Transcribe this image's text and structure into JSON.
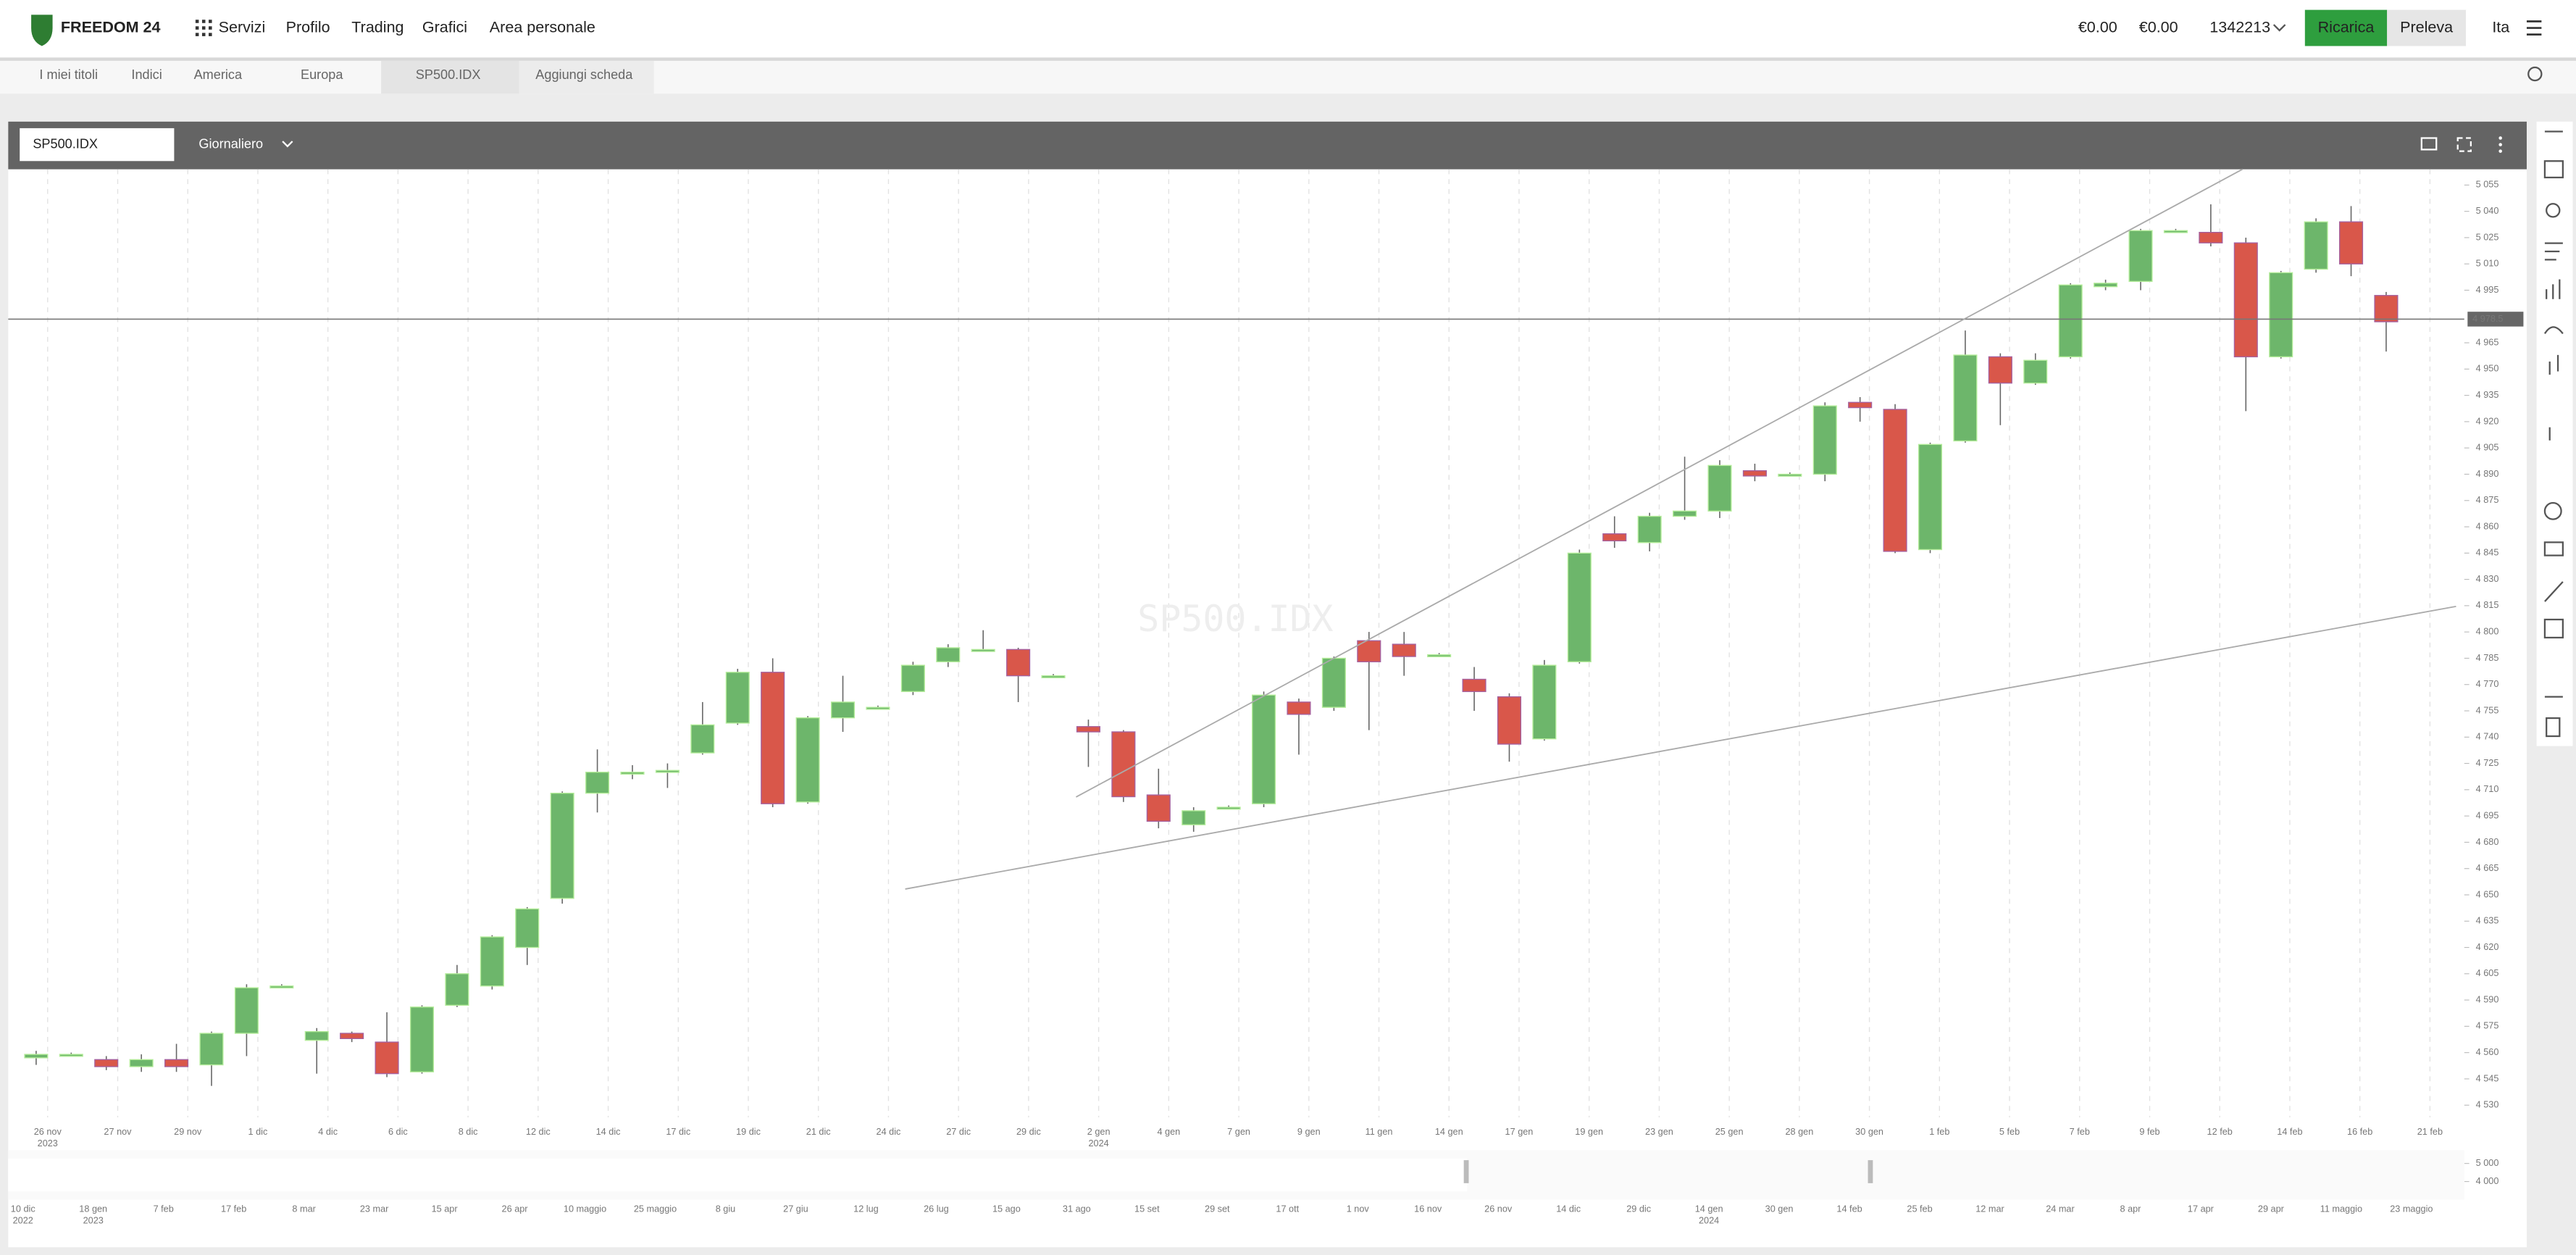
{
  "header": {
    "logo": "FREEDOM 24",
    "nav": [
      "Servizi",
      "Profilo",
      "Trading",
      "Grafici",
      "Area personale"
    ],
    "balance": "€0.00",
    "balance2": "€0.00",
    "account": "1342213",
    "topup": "Ricarica",
    "withdraw": "Preleva",
    "lang": "Ita"
  },
  "tabs": [
    "I miei titoli",
    "Indici",
    "America",
    "Europa",
    "SP500.IDX",
    "Aggiungi scheda"
  ],
  "toolbar": {
    "symbol": "SP500.IDX",
    "interval": "Giornaliero"
  },
  "chart_data": {
    "type": "candlestick",
    "watermark": "SP500.IDX",
    "open": [
      4557,
      4559,
      4556,
      4552,
      4556,
      4553,
      4571,
      4597,
      4567,
      4571,
      4566,
      4549,
      4587,
      4598,
      4620,
      4648,
      4708,
      4720,
      4720,
      4731,
      4748,
      4777,
      4703,
      4751,
      4757,
      4766,
      4783,
      4790,
      4790,
      4775,
      4746,
      4743,
      4707,
      4690,
      4700,
      4702,
      4760,
      4757,
      4795,
      4793,
      4787,
      4773,
      4763,
      4739,
      4783,
      4856,
      4851,
      4866,
      4869,
      4892,
      4890,
      4890,
      4931,
      4927,
      4847,
      4909,
      4957,
      4942,
      4957,
      4997,
      5000,
      5029,
      5028,
      5022,
      4957,
      5007,
      5034,
      4992
    ],
    "high": [
      4561,
      4560,
      4558,
      4559,
      4565,
      4572,
      4599,
      4599,
      4574,
      4572,
      4583,
      4587,
      4610,
      4627,
      4643,
      4709,
      4733,
      4724,
      4725,
      4760,
      4779,
      4785,
      4752,
      4775,
      4758,
      4783,
      4793,
      4801,
      4791,
      4776,
      4750,
      4744,
      4722,
      4700,
      4701,
      4766,
      4762,
      4786,
      4800,
      4800,
      4788,
      4780,
      4765,
      4784,
      4847,
      4866,
      4868,
      4900,
      4898,
      4896,
      4891,
      4931,
      4934,
      4930,
      4908,
      4972,
      4959,
      4959,
      4999,
      5001,
      5030,
      5030,
      5044,
      5025,
      5006,
      5036,
      5043,
      4994
    ],
    "low": [
      4553,
      4558,
      4550,
      4549,
      4549,
      4541,
      4558,
      4597,
      4548,
      4566,
      4546,
      4548,
      4586,
      4596,
      4610,
      4645,
      4697,
      4716,
      4711,
      4730,
      4747,
      4700,
      4702,
      4743,
      4756,
      4764,
      4780,
      4789,
      4760,
      4774,
      4723,
      4703,
      4688,
      4686,
      4699,
      4700,
      4730,
      4755,
      4744,
      4775,
      4786,
      4755,
      4726,
      4738,
      4782,
      4848,
      4846,
      4864,
      4865,
      4886,
      4889,
      4886,
      4920,
      4845,
      4845,
      4908,
      4918,
      4941,
      4956,
      4995,
      4995,
      5028,
      5020,
      4926,
      4956,
      5005,
      5003,
      4960
    ],
    "close": [
      4559,
      4559,
      4552,
      4556,
      4552,
      4571,
      4597,
      4598,
      4572,
      4568,
      4548,
      4586,
      4605,
      4626,
      4642,
      4708,
      4720,
      4720,
      4721,
      4747,
      4777,
      4702,
      4751,
      4760,
      4757,
      4781,
      4791,
      4790,
      4775,
      4775,
      4743,
      4706,
      4692,
      4698,
      4700,
      4764,
      4753,
      4785,
      4783,
      4786,
      4787,
      4766,
      4736,
      4781,
      4845,
      4852,
      4866,
      4869,
      4895,
      4889,
      4890,
      4929,
      4928,
      4846,
      4907,
      4958,
      4942,
      4955,
      4998,
      4999,
      5029,
      5029,
      5022,
      4957,
      5005,
      5034,
      5010,
      4977
    ],
    "up_color": "#6db66b",
    "down_color": "#d9574a",
    "ylim": [
      4523,
      5064
    ],
    "yticks": [
      {
        "value": 4530,
        "label": "4 530"
      },
      {
        "value": 4545,
        "label": "4 545"
      },
      {
        "value": 4560,
        "label": "4 560"
      },
      {
        "value": 4575,
        "label": "4 575"
      },
      {
        "value": 4590,
        "label": "4 590"
      },
      {
        "value": 4605,
        "label": "4 605"
      },
      {
        "value": 4620,
        "label": "4 620"
      },
      {
        "value": 4635,
        "label": "4 635"
      },
      {
        "value": 4650,
        "label": "4 650"
      },
      {
        "value": 4665,
        "label": "4 665"
      },
      {
        "value": 4680,
        "label": "4 680"
      },
      {
        "value": 4695,
        "label": "4 695"
      },
      {
        "value": 4710,
        "label": "4 710"
      },
      {
        "value": 4725,
        "label": "4 725"
      },
      {
        "value": 4740,
        "label": "4 740"
      },
      {
        "value": 4755,
        "label": "4 755"
      },
      {
        "value": 4770,
        "label": "4 770"
      },
      {
        "value": 4785,
        "label": "4 785"
      },
      {
        "value": 4800,
        "label": "4 800"
      },
      {
        "value": 4815,
        "label": "4 815"
      },
      {
        "value": 4830,
        "label": "4 830"
      },
      {
        "value": 4845,
        "label": "4 845"
      },
      {
        "value": 4860,
        "label": "4 860"
      },
      {
        "value": 4875,
        "label": "4 875"
      },
      {
        "value": 4890,
        "label": "4 890"
      },
      {
        "value": 4905,
        "label": "4 905"
      },
      {
        "value": 4920,
        "label": "4 920"
      },
      {
        "value": 4935,
        "label": "4 935"
      },
      {
        "value": 4950,
        "label": "4 950"
      },
      {
        "value": 4965,
        "label": "4 965"
      },
      {
        "value": 4995,
        "label": "4 995"
      },
      {
        "value": 5010,
        "label": "5 010"
      },
      {
        "value": 5025,
        "label": "5 025"
      },
      {
        "value": 5040,
        "label": "5 040"
      },
      {
        "value": 5055,
        "label": "5 055"
      }
    ],
    "last_price": {
      "value": 4978.5,
      "label": "4 978.5"
    },
    "x_labels": [
      {
        "label": "26 nov",
        "year": "2023"
      },
      "27 nov",
      "29 nov",
      "1 dic",
      "4 dic",
      "6 dic",
      "8 dic",
      "12 dic",
      "14 dic",
      "17 dic",
      "19 dic",
      "21 dic",
      "24 dic",
      "27 dic",
      "29 dic",
      {
        "label": "2 gen",
        "year": "2024"
      },
      "4 gen",
      "7 gen",
      "9 gen",
      "11 gen",
      "14 gen",
      "17 gen",
      "19 gen",
      "23 gen",
      "25 gen",
      "28 gen",
      "30 gen",
      "1 feb",
      "5 feb",
      "7 feb",
      "9 feb",
      "12 feb",
      "14 feb",
      "16 feb",
      "21 feb"
    ],
    "navigator": {
      "ylim": [
        3000,
        5455
      ],
      "yticks": [
        {
          "value": 5000,
          "label": "5 000"
        },
        {
          "value": 4000,
          "label": "4 000"
        }
      ],
      "labels": [
        {
          "label": "10 dic",
          "year": "2022"
        },
        {
          "label": "18 gen",
          "year": "2023"
        },
        "7 feb",
        "17 feb",
        "8 mar",
        "23 mar",
        "15 apr",
        "26 apr",
        "10 maggio",
        "25 maggio",
        "8 giu",
        "27 giu",
        "12 lug",
        "26 lug",
        "15 ago",
        "31 ago",
        "15 set",
        "29 set",
        "17 ott",
        "1 nov",
        "16 nov",
        "26 nov",
        "14 dic",
        "29 dic",
        {
          "label": "14 gen",
          "year": "2024"
        },
        "30 gen",
        "14 feb",
        "25 feb",
        "12 mar",
        "24 mar",
        "8 apr",
        "17 apr",
        "29 apr",
        "11 maggio",
        "23 maggio"
      ]
    }
  }
}
